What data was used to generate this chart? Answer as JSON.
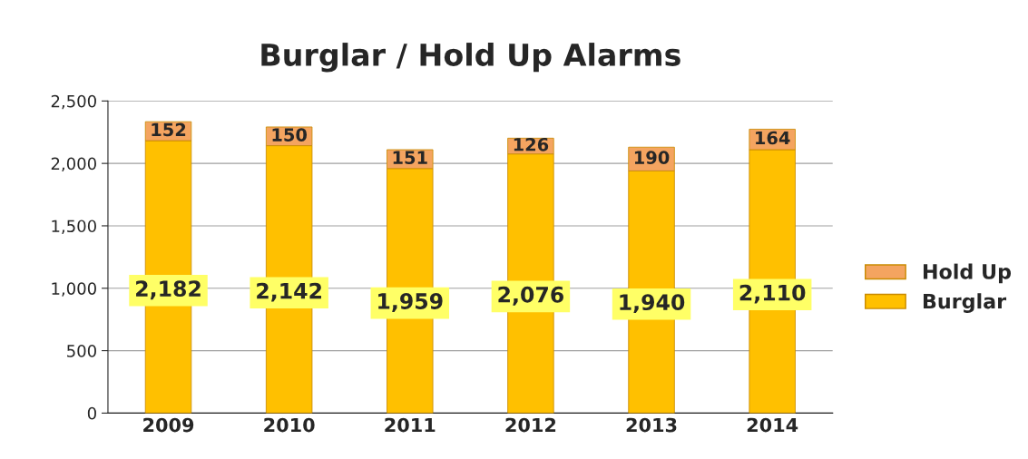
{
  "chart_data": {
    "type": "bar",
    "title": "Burglar / Hold Up Alarms",
    "categories": [
      "2009",
      "2010",
      "2011",
      "2012",
      "2013",
      "2014"
    ],
    "stacked": true,
    "series": [
      {
        "name": "Burglar",
        "color": "#ffc000",
        "values": [
          2182,
          2142,
          1959,
          2076,
          1940,
          2110
        ],
        "value_labels": [
          "2,182",
          "2,142",
          "1,959",
          "2,076",
          "1,940",
          "2,110"
        ]
      },
      {
        "name": "Hold Up",
        "color": "#f4a460",
        "values": [
          152,
          150,
          151,
          126,
          190,
          164
        ],
        "value_labels": [
          "152",
          "150",
          "151",
          "126",
          "190",
          "164"
        ]
      }
    ],
    "ylim": [
      0,
      2500
    ],
    "yticks": [
      0,
      {
        "value": 500,
        "label": "500"
      },
      {
        "value": 1000,
        "label": "1,000"
      },
      {
        "value": 1500,
        "label": "1,500"
      },
      {
        "value": 2000,
        "label": "2,000"
      },
      {
        "value": 2500,
        "label": "2,500"
      }
    ],
    "grid": "y",
    "legend": "right"
  }
}
